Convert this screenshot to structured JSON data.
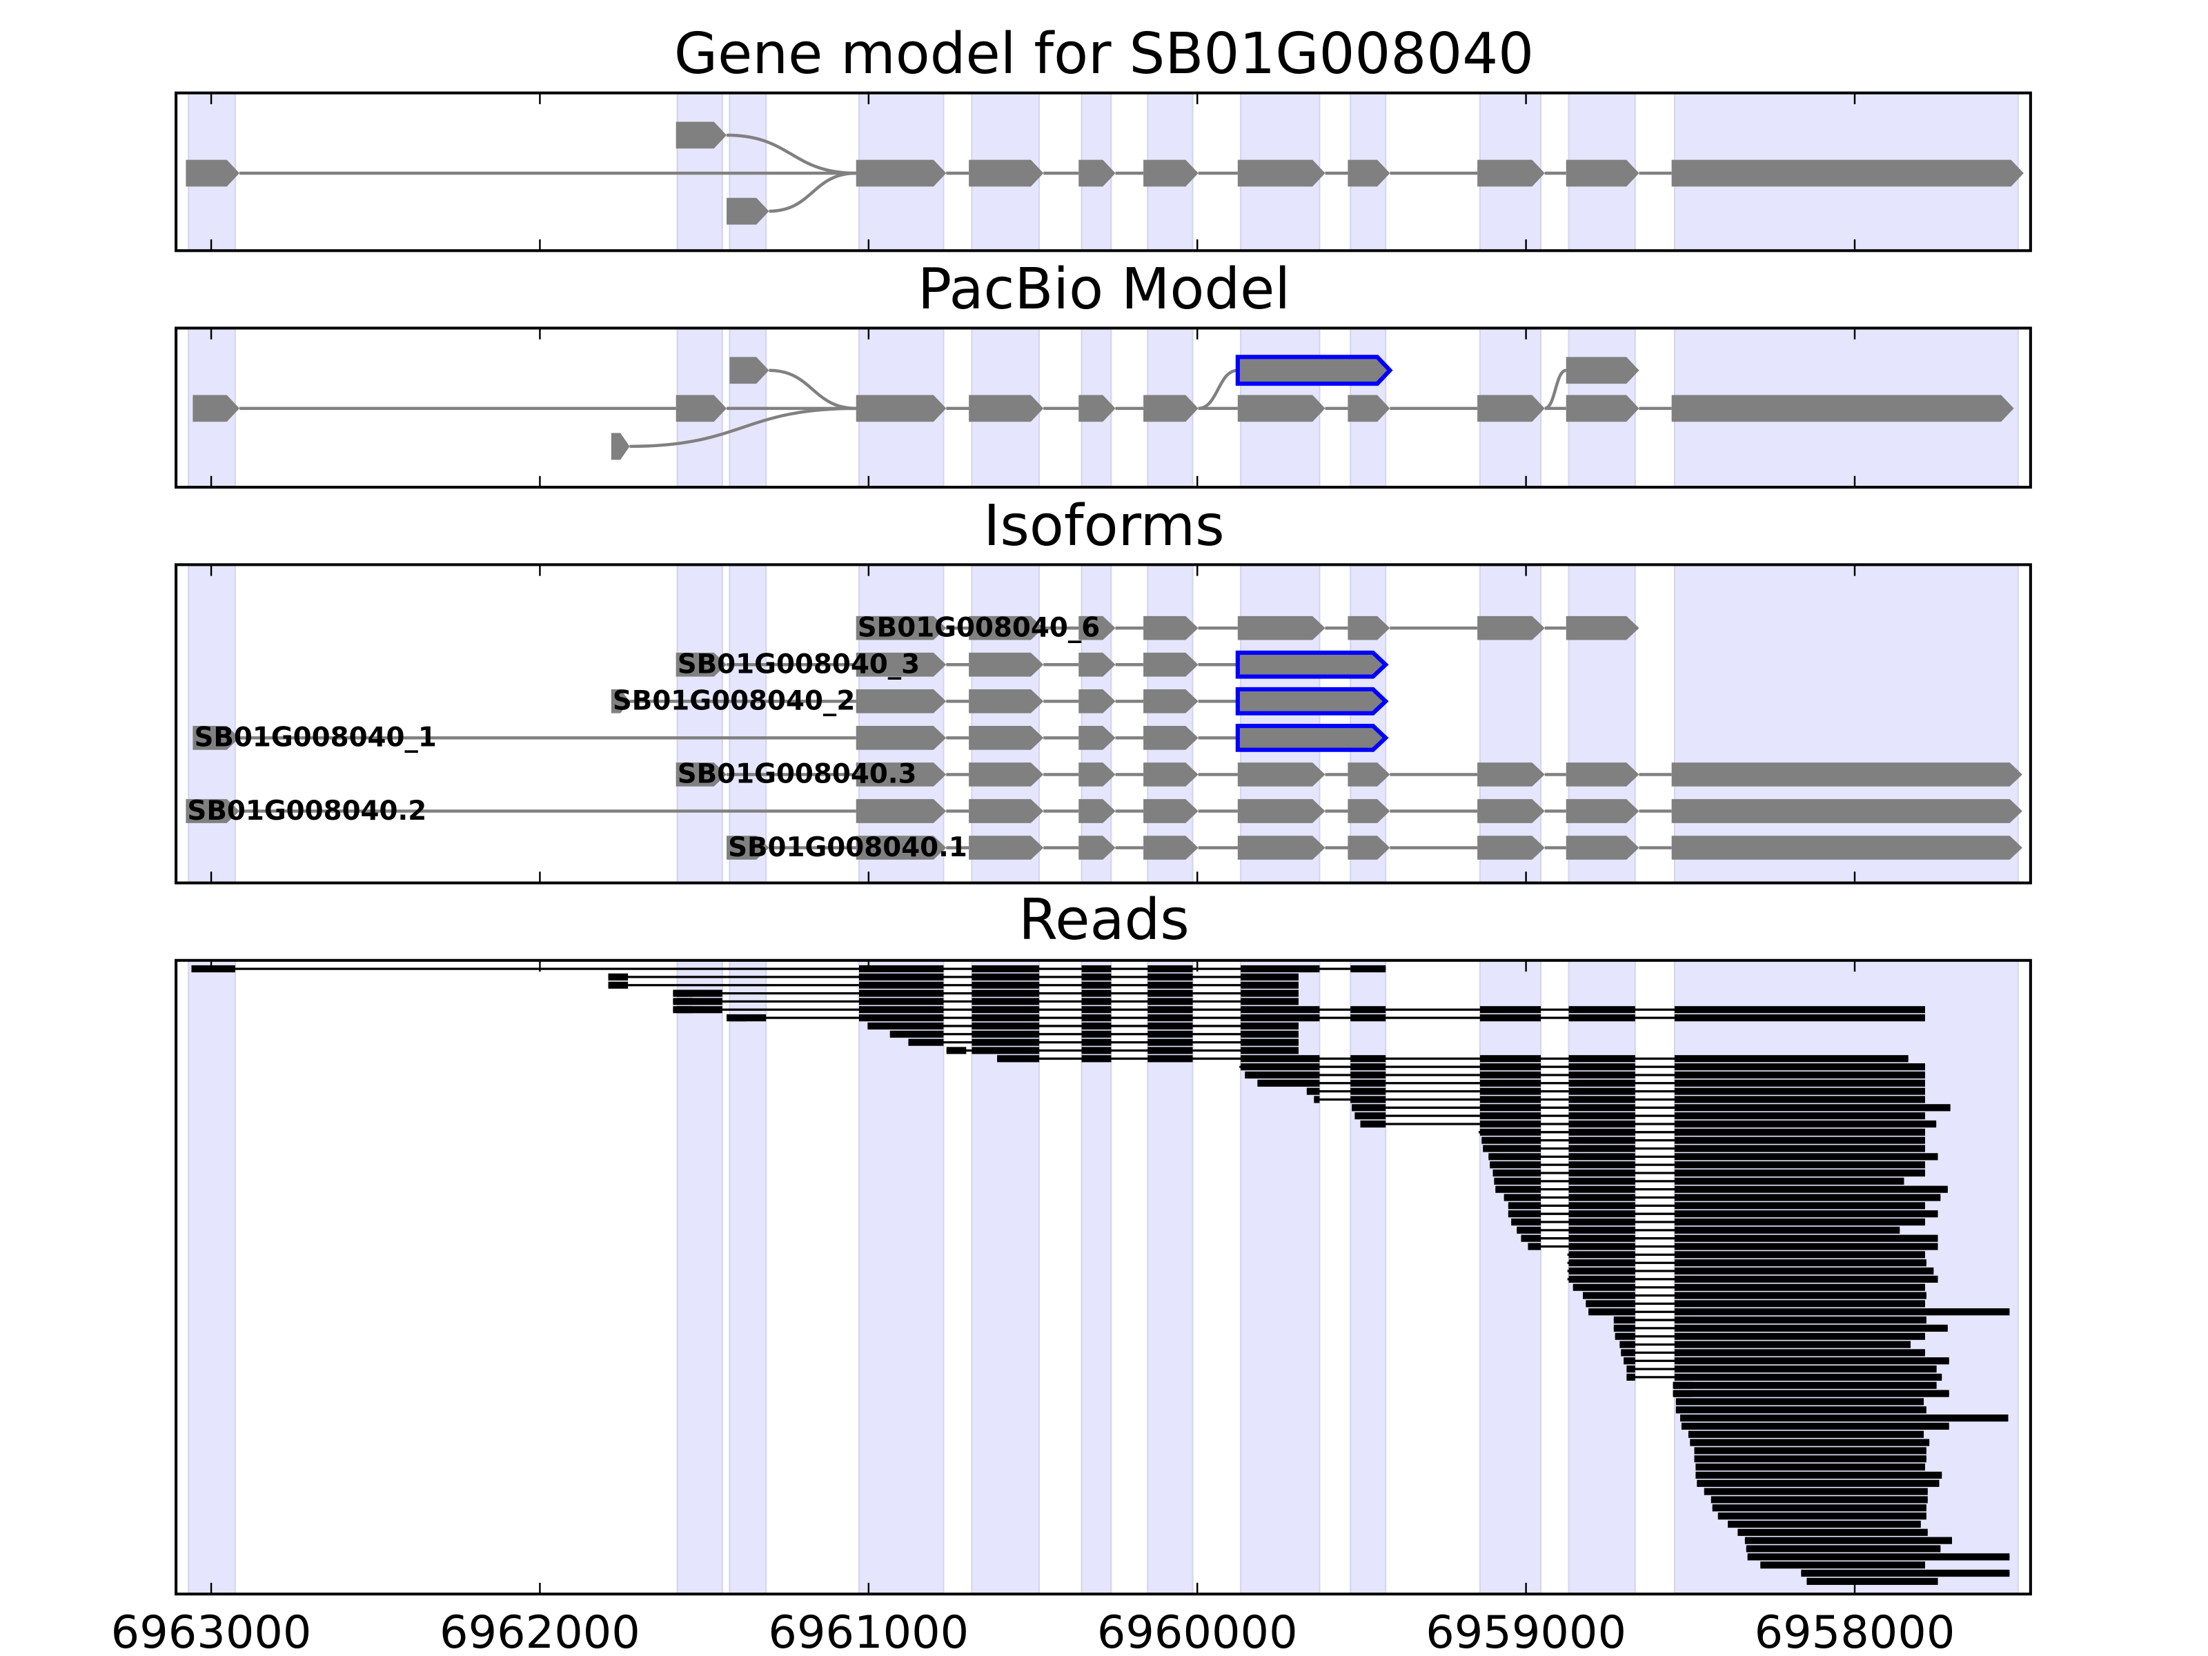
{
  "chart_data": {
    "type": "gene-track",
    "xlim": [
      6963107,
      6957465
    ],
    "xticks": [
      6963000,
      6962000,
      6961000,
      6960000,
      6959000,
      6958000
    ],
    "xtick_labels": [
      "6963000",
      "6962000",
      "6961000",
      "6960000",
      "6959000",
      "6958000"
    ],
    "colors": {
      "exon": "#808080",
      "highlight": "#0000ff",
      "band": "#e5e5fd",
      "band_edge": "#d4d4f0",
      "read": "#000000",
      "intron": "#808080"
    },
    "exon_bands": [
      [
        6963069,
        6962927
      ],
      [
        6961582,
        6961445
      ],
      [
        6961423,
        6961312
      ],
      [
        6961029,
        6960772
      ],
      [
        6960686,
        6960481
      ],
      [
        6960352,
        6960262
      ],
      [
        6960151,
        6960014
      ],
      [
        6959868,
        6959628
      ],
      [
        6959534,
        6959427
      ],
      [
        6959140,
        6958955
      ],
      [
        6958870,
        6958668
      ],
      [
        6958548,
        6957503
      ]
    ],
    "panels": [
      {
        "title": "Gene model for SB01G008040",
        "transcripts": [
          {
            "row": 0,
            "exons": [
              [
                6963077,
                6962914
              ],
              [
                6961038,
                6960764
              ],
              [
                6960695,
                6960468
              ],
              [
                6960361,
                6960249
              ],
              [
                6960164,
                6959997
              ],
              [
                6959877,
                6959611
              ],
              [
                6959542,
                6959414
              ],
              [
                6959148,
                6958943
              ],
              [
                6958878,
                6958656
              ],
              [
                6958557,
                6957486
              ]
            ]
          },
          {
            "row": -1,
            "exons": [
              [
                6961586,
                6961432
              ]
            ]
          },
          {
            "row": 1,
            "exons": [
              [
                6961432,
                6961303
              ]
            ]
          }
        ],
        "links": [
          {
            "from": [
              -1,
              6961432
            ],
            "to": [
              0,
              6961038
            ]
          },
          {
            "from": [
              1,
              6961303
            ],
            "to": [
              0,
              6961038
            ]
          }
        ]
      },
      {
        "title": "PacBio Model",
        "transcripts": [
          {
            "row": 0,
            "exons": [
              [
                6963056,
                6962914
              ],
              [
                6961586,
                6961432
              ],
              [
                6961038,
                6960764
              ],
              [
                6960695,
                6960468
              ],
              [
                6960361,
                6960249
              ],
              [
                6960164,
                6959997
              ],
              [
                6959877,
                6959611
              ],
              [
                6959542,
                6959414
              ],
              [
                6959148,
                6958943
              ],
              [
                6958878,
                6958656
              ],
              [
                6958557,
                6957516
              ]
            ]
          },
          {
            "row": -1,
            "exons": [
              [
                6961423,
                6961303
              ]
            ]
          },
          {
            "row": -1,
            "exons": [
              [
                6959877,
                6959414,
                1
              ]
            ]
          },
          {
            "row": -1,
            "exons": [
              [
                6958878,
                6958656
              ]
            ]
          },
          {
            "row": 1,
            "exons": [
              [
                6961783,
                6961727
              ]
            ]
          }
        ],
        "links": [
          {
            "from": [
              -1,
              6961303
            ],
            "to": [
              0,
              6961038
            ]
          },
          {
            "from": [
              1,
              6961727
            ],
            "to": [
              0,
              6961038
            ]
          },
          {
            "from": [
              0,
              6959997
            ],
            "to": [
              -1,
              6959877
            ]
          },
          {
            "from": [
              0,
              6958943
            ],
            "to": [
              -1,
              6958878
            ]
          }
        ]
      },
      {
        "title": "Isoforms",
        "transcripts": [
          {
            "row": 0,
            "label": "SB01G008040_6",
            "exons": [
              [
                6961038,
                6960764
              ],
              [
                6960695,
                6960468
              ],
              [
                6960361,
                6960249
              ],
              [
                6960164,
                6959997
              ],
              [
                6959877,
                6959611
              ],
              [
                6959542,
                6959414
              ],
              [
                6959148,
                6958943
              ],
              [
                6958878,
                6958656
              ]
            ]
          },
          {
            "row": 1,
            "label": "SB01G008040_3",
            "exons": [
              [
                6961586,
                6961432
              ],
              [
                6961038,
                6960764
              ],
              [
                6960695,
                6960468
              ],
              [
                6960361,
                6960249
              ],
              [
                6960164,
                6959997
              ],
              [
                6959877,
                6959427,
                1
              ]
            ]
          },
          {
            "row": 2,
            "label": "SB01G008040_2",
            "exons": [
              [
                6961783,
                6961727
              ],
              [
                6961038,
                6960764
              ],
              [
                6960695,
                6960468
              ],
              [
                6960361,
                6960249
              ],
              [
                6960164,
                6959997
              ],
              [
                6959877,
                6959427,
                1
              ]
            ]
          },
          {
            "row": 3,
            "label": "SB01G008040_1",
            "exons": [
              [
                6963056,
                6962914
              ],
              [
                6961038,
                6960764
              ],
              [
                6960695,
                6960468
              ],
              [
                6960361,
                6960249
              ],
              [
                6960164,
                6959997
              ],
              [
                6959877,
                6959427,
                1
              ]
            ]
          },
          {
            "row": 4,
            "label": "SB01G008040.3",
            "exons": [
              [
                6961586,
                6961432
              ],
              [
                6961038,
                6960764
              ],
              [
                6960695,
                6960468
              ],
              [
                6960361,
                6960249
              ],
              [
                6960164,
                6959997
              ],
              [
                6959877,
                6959611
              ],
              [
                6959542,
                6959414
              ],
              [
                6959148,
                6958943
              ],
              [
                6958878,
                6958656
              ],
              [
                6958557,
                6957490
              ]
            ]
          },
          {
            "row": 5,
            "label": "SB01G008040.2",
            "exons": [
              [
                6963077,
                6962914
              ],
              [
                6961038,
                6960764
              ],
              [
                6960695,
                6960468
              ],
              [
                6960361,
                6960249
              ],
              [
                6960164,
                6959997
              ],
              [
                6959877,
                6959611
              ],
              [
                6959542,
                6959414
              ],
              [
                6959148,
                6958943
              ],
              [
                6958878,
                6958656
              ],
              [
                6958557,
                6957490
              ]
            ]
          },
          {
            "row": 6,
            "label": "SB01G008040.1",
            "exons": [
              [
                6961432,
                6961303
              ],
              [
                6961038,
                6960764
              ],
              [
                6960695,
                6960468
              ],
              [
                6960361,
                6960249
              ],
              [
                6960164,
                6959997
              ],
              [
                6959877,
                6959611
              ],
              [
                6959542,
                6959414
              ],
              [
                6959148,
                6958943
              ],
              [
                6958878,
                6958656
              ],
              [
                6958557,
                6957490
              ]
            ]
          }
        ],
        "links": []
      },
      {
        "title": "Reads",
        "reads": [
          [
            6963060,
            6959427,
            [
              1,
              2
            ]
          ],
          [
            6961792,
            6959692,
            [
              1,
              2
            ]
          ],
          [
            6961792,
            6959692,
            [
              1,
              2
            ]
          ],
          [
            6961595,
            6959692,
            [
              2
            ]
          ],
          [
            6961595,
            6959692,
            [
              2
            ]
          ],
          [
            6961595,
            6957786,
            [
              2
            ]
          ],
          [
            6961432,
            6957786
          ],
          [
            6961003,
            6959692
          ],
          [
            6960935,
            6959692
          ],
          [
            6960879,
            6959692
          ],
          [
            6960763,
            6959692
          ],
          [
            6960609,
            6957837
          ],
          [
            6959872,
            6957786
          ],
          [
            6959855,
            6957786
          ],
          [
            6959817,
            6957786
          ],
          [
            6959667,
            6957786
          ],
          [
            6959645,
            6957786
          ],
          [
            6959530,
            6957709
          ],
          [
            6959521,
            6957786
          ],
          [
            6959504,
            6957752
          ],
          [
            6959144,
            6957786
          ],
          [
            6959135,
            6957786
          ],
          [
            6959131,
            6957786
          ],
          [
            6959114,
            6957747
          ],
          [
            6959110,
            6957786
          ],
          [
            6959101,
            6957786
          ],
          [
            6959097,
            6957850
          ],
          [
            6959093,
            6957717
          ],
          [
            6959067,
            6957739
          ],
          [
            6959054,
            6957786
          ],
          [
            6959054,
            6957747
          ],
          [
            6959045,
            6957786
          ],
          [
            6959028,
            6957863
          ],
          [
            6959015,
            6957747
          ],
          [
            6958994,
            6957747
          ],
          [
            6958874,
            6957786
          ],
          [
            6958874,
            6957782
          ],
          [
            6958874,
            6957760
          ],
          [
            6958874,
            6957747
          ],
          [
            6958857,
            6957786
          ],
          [
            6958827,
            6957782
          ],
          [
            6958818,
            6957786
          ],
          [
            6958810,
            6957529
          ],
          [
            6958733,
            6957782
          ],
          [
            6958733,
            6957717
          ],
          [
            6958729,
            6957786
          ],
          [
            6958715,
            6957830
          ],
          [
            6958711,
            6957786
          ],
          [
            6958703,
            6957713
          ],
          [
            6958694,
            6957751
          ],
          [
            6958694,
            6957735
          ],
          [
            6958553,
            6957751
          ],
          [
            6958553,
            6957713
          ],
          [
            6958544,
            6957790
          ],
          [
            6958544,
            6957782
          ],
          [
            6958531,
            6957533
          ],
          [
            6958527,
            6957713
          ],
          [
            6958506,
            6957790
          ],
          [
            6958501,
            6957773
          ],
          [
            6958488,
            6957782
          ],
          [
            6958488,
            6957782
          ],
          [
            6958484,
            6957786
          ],
          [
            6958484,
            6957735
          ],
          [
            6958480,
            6957743
          ],
          [
            6958458,
            6957778
          ],
          [
            6958437,
            6957778
          ],
          [
            6958433,
            6957782
          ],
          [
            6958416,
            6957782
          ],
          [
            6958386,
            6957799
          ],
          [
            6958356,
            6957778
          ],
          [
            6958334,
            6957704
          ],
          [
            6958330,
            6957739
          ],
          [
            6958326,
            6957529
          ],
          [
            6958287,
            6957786
          ],
          [
            6958163,
            6957529
          ],
          [
            6958146,
            6957747
          ]
        ]
      }
    ]
  }
}
